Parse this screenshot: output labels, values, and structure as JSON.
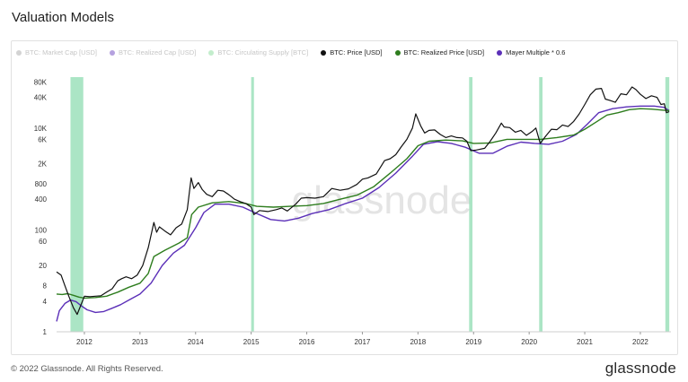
{
  "page": {
    "title": "Valuation Models",
    "copyright": "© 2022 Glassnode. All Rights Reserved.",
    "logo": "glassnode"
  },
  "chart_data": {
    "type": "line",
    "yscale": "log",
    "ylim": [
      1,
      100000
    ],
    "xlim": [
      2011.5,
      2022.55
    ],
    "watermark": "glassnode",
    "yticks": [
      {
        "value": 1,
        "label": "1"
      },
      {
        "value": 4,
        "label": "4"
      },
      {
        "value": 8,
        "label": "8"
      },
      {
        "value": 20,
        "label": "20"
      },
      {
        "value": 60,
        "label": "60"
      },
      {
        "value": 100,
        "label": "100"
      },
      {
        "value": 400,
        "label": "400"
      },
      {
        "value": 800,
        "label": "800"
      },
      {
        "value": 2000,
        "label": "2K"
      },
      {
        "value": 6000,
        "label": "6K"
      },
      {
        "value": 10000,
        "label": "10K"
      },
      {
        "value": 40000,
        "label": "40K"
      },
      {
        "value": 80000,
        "label": "80K"
      }
    ],
    "xticks": [
      {
        "value": 2012,
        "label": "2012"
      },
      {
        "value": 2013,
        "label": "2013"
      },
      {
        "value": 2014,
        "label": "2014"
      },
      {
        "value": 2015,
        "label": "2015"
      },
      {
        "value": 2016,
        "label": "2016"
      },
      {
        "value": 2017,
        "label": "2017"
      },
      {
        "value": 2018,
        "label": "2018"
      },
      {
        "value": 2019,
        "label": "2019"
      },
      {
        "value": 2020,
        "label": "2020"
      },
      {
        "value": 2021,
        "label": "2021"
      },
      {
        "value": 2022,
        "label": "2022"
      }
    ],
    "legend": [
      {
        "name": "BTC: Market Cap [USD]",
        "color": "#9e9e9e",
        "enabled": false
      },
      {
        "name": "BTC: Realized Cap [USD]",
        "color": "#5b2fb8",
        "enabled": false
      },
      {
        "name": "BTC: Circulating Supply [BTC]",
        "color": "#7bd88f",
        "enabled": false
      },
      {
        "name": "BTC: Price [USD]",
        "color": "#111111",
        "enabled": true
      },
      {
        "name": "BTC: Realized Price [USD]",
        "color": "#2e7d1e",
        "enabled": true
      },
      {
        "name": "Mayer Multiple * 0.6",
        "color": "#5b2fb8",
        "enabled": true
      }
    ],
    "highlight_bands": [
      {
        "start": 2011.75,
        "end": 2011.98
      },
      {
        "start": 2015.0,
        "end": 2015.05
      },
      {
        "start": 2018.92,
        "end": 2018.98
      },
      {
        "start": 2020.18,
        "end": 2020.24
      },
      {
        "start": 2022.45,
        "end": 2022.52
      }
    ],
    "series": [
      {
        "name": "BTC: Price [USD]",
        "color": "#111111",
        "points": [
          [
            2011.5,
            15
          ],
          [
            2011.58,
            13
          ],
          [
            2011.65,
            8
          ],
          [
            2011.72,
            5
          ],
          [
            2011.8,
            3
          ],
          [
            2011.87,
            2.2
          ],
          [
            2011.92,
            3
          ],
          [
            2012.0,
            5
          ],
          [
            2012.1,
            4.9
          ],
          [
            2012.2,
            5
          ],
          [
            2012.3,
            5.1
          ],
          [
            2012.4,
            6
          ],
          [
            2012.5,
            7
          ],
          [
            2012.6,
            10
          ],
          [
            2012.67,
            11
          ],
          [
            2012.75,
            12
          ],
          [
            2012.85,
            11
          ],
          [
            2012.95,
            13
          ],
          [
            2013.05,
            20
          ],
          [
            2013.15,
            45
          ],
          [
            2013.25,
            140
          ],
          [
            2013.3,
            90
          ],
          [
            2013.35,
            115
          ],
          [
            2013.45,
            95
          ],
          [
            2013.55,
            80
          ],
          [
            2013.65,
            110
          ],
          [
            2013.75,
            130
          ],
          [
            2013.85,
            250
          ],
          [
            2013.92,
            1050
          ],
          [
            2013.97,
            650
          ],
          [
            2014.05,
            850
          ],
          [
            2014.12,
            620
          ],
          [
            2014.2,
            500
          ],
          [
            2014.3,
            450
          ],
          [
            2014.4,
            600
          ],
          [
            2014.5,
            580
          ],
          [
            2014.6,
            490
          ],
          [
            2014.7,
            400
          ],
          [
            2014.8,
            360
          ],
          [
            2014.9,
            330
          ],
          [
            2015.0,
            280
          ],
          [
            2015.05,
            200
          ],
          [
            2015.15,
            240
          ],
          [
            2015.3,
            230
          ],
          [
            2015.45,
            250
          ],
          [
            2015.55,
            270
          ],
          [
            2015.65,
            235
          ],
          [
            2015.8,
            320
          ],
          [
            2015.9,
            420
          ],
          [
            2016.0,
            430
          ],
          [
            2016.15,
            420
          ],
          [
            2016.3,
            450
          ],
          [
            2016.45,
            650
          ],
          [
            2016.6,
            600
          ],
          [
            2016.75,
            640
          ],
          [
            2016.9,
            780
          ],
          [
            2017.0,
            990
          ],
          [
            2017.1,
            1050
          ],
          [
            2017.25,
            1250
          ],
          [
            2017.4,
            2300
          ],
          [
            2017.5,
            2500
          ],
          [
            2017.6,
            3000
          ],
          [
            2017.7,
            4300
          ],
          [
            2017.8,
            6000
          ],
          [
            2017.9,
            10000
          ],
          [
            2017.96,
            19000
          ],
          [
            2018.05,
            11000
          ],
          [
            2018.12,
            8000
          ],
          [
            2018.2,
            9000
          ],
          [
            2018.3,
            9200
          ],
          [
            2018.4,
            7500
          ],
          [
            2018.5,
            6500
          ],
          [
            2018.6,
            7000
          ],
          [
            2018.7,
            6500
          ],
          [
            2018.8,
            6400
          ],
          [
            2018.88,
            5500
          ],
          [
            2018.95,
            3600
          ],
          [
            2019.05,
            3700
          ],
          [
            2019.2,
            4000
          ],
          [
            2019.3,
            5500
          ],
          [
            2019.4,
            8000
          ],
          [
            2019.5,
            12500
          ],
          [
            2019.55,
            10500
          ],
          [
            2019.65,
            10200
          ],
          [
            2019.75,
            8300
          ],
          [
            2019.85,
            9000
          ],
          [
            2019.95,
            7200
          ],
          [
            2020.05,
            8500
          ],
          [
            2020.12,
            10000
          ],
          [
            2020.2,
            5000
          ],
          [
            2020.3,
            7000
          ],
          [
            2020.4,
            9500
          ],
          [
            2020.5,
            9300
          ],
          [
            2020.6,
            11500
          ],
          [
            2020.7,
            10700
          ],
          [
            2020.8,
            13500
          ],
          [
            2020.9,
            19000
          ],
          [
            2021.0,
            29000
          ],
          [
            2021.1,
            45000
          ],
          [
            2021.2,
            58000
          ],
          [
            2021.3,
            60000
          ],
          [
            2021.37,
            37000
          ],
          [
            2021.45,
            35000
          ],
          [
            2021.55,
            32000
          ],
          [
            2021.65,
            47000
          ],
          [
            2021.75,
            45000
          ],
          [
            2021.85,
            64000
          ],
          [
            2021.92,
            57000
          ],
          [
            2022.0,
            46000
          ],
          [
            2022.1,
            38000
          ],
          [
            2022.2,
            43000
          ],
          [
            2022.3,
            40000
          ],
          [
            2022.37,
            29000
          ],
          [
            2022.43,
            30000
          ],
          [
            2022.47,
            20000
          ],
          [
            2022.52,
            21000
          ]
        ]
      },
      {
        "name": "BTC: Realized Price [USD]",
        "color": "#2e7d1e",
        "points": [
          [
            2011.5,
            5.5
          ],
          [
            2011.6,
            5.4
          ],
          [
            2011.7,
            5.6
          ],
          [
            2011.8,
            5.2
          ],
          [
            2011.9,
            4.8
          ],
          [
            2012.0,
            4.6
          ],
          [
            2012.2,
            4.7
          ],
          [
            2012.4,
            5.0
          ],
          [
            2012.6,
            6.0
          ],
          [
            2012.8,
            7.5
          ],
          [
            2013.0,
            9
          ],
          [
            2013.15,
            14
          ],
          [
            2013.25,
            30
          ],
          [
            2013.45,
            40
          ],
          [
            2013.7,
            55
          ],
          [
            2013.85,
            70
          ],
          [
            2013.93,
            200
          ],
          [
            2014.05,
            280
          ],
          [
            2014.3,
            340
          ],
          [
            2014.6,
            360
          ],
          [
            2014.9,
            330
          ],
          [
            2015.1,
            290
          ],
          [
            2015.4,
            280
          ],
          [
            2015.7,
            290
          ],
          [
            2016.0,
            300
          ],
          [
            2016.3,
            330
          ],
          [
            2016.6,
            400
          ],
          [
            2016.9,
            480
          ],
          [
            2017.2,
            700
          ],
          [
            2017.5,
            1300
          ],
          [
            2017.8,
            2500
          ],
          [
            2018.0,
            4500
          ],
          [
            2018.2,
            5500
          ],
          [
            2018.5,
            5800
          ],
          [
            2018.8,
            5600
          ],
          [
            2019.0,
            5000
          ],
          [
            2019.3,
            5100
          ],
          [
            2019.6,
            6000
          ],
          [
            2019.9,
            6000
          ],
          [
            2020.2,
            6000
          ],
          [
            2020.5,
            6500
          ],
          [
            2020.8,
            7300
          ],
          [
            2021.0,
            9500
          ],
          [
            2021.2,
            13000
          ],
          [
            2021.4,
            18000
          ],
          [
            2021.6,
            20000
          ],
          [
            2021.8,
            23000
          ],
          [
            2022.0,
            24000
          ],
          [
            2022.2,
            23500
          ],
          [
            2022.4,
            22500
          ],
          [
            2022.52,
            22000
          ]
        ]
      },
      {
        "name": "Mayer Multiple * 0.6",
        "color": "#5b2fb8",
        "points": [
          [
            2011.5,
            1.6
          ],
          [
            2011.55,
            2.6
          ],
          [
            2011.65,
            3.6
          ],
          [
            2011.75,
            4.2
          ],
          [
            2011.85,
            3.9
          ],
          [
            2011.95,
            3.2
          ],
          [
            2012.05,
            2.7
          ],
          [
            2012.2,
            2.4
          ],
          [
            2012.35,
            2.5
          ],
          [
            2012.5,
            2.9
          ],
          [
            2012.65,
            3.4
          ],
          [
            2012.8,
            4.2
          ],
          [
            2013.0,
            5.5
          ],
          [
            2013.2,
            9
          ],
          [
            2013.4,
            20
          ],
          [
            2013.6,
            35
          ],
          [
            2013.8,
            50
          ],
          [
            2014.0,
            110
          ],
          [
            2014.15,
            220
          ],
          [
            2014.35,
            320
          ],
          [
            2014.6,
            320
          ],
          [
            2014.85,
            280
          ],
          [
            2015.1,
            210
          ],
          [
            2015.35,
            160
          ],
          [
            2015.6,
            150
          ],
          [
            2015.85,
            170
          ],
          [
            2016.1,
            210
          ],
          [
            2016.4,
            250
          ],
          [
            2016.7,
            330
          ],
          [
            2017.0,
            420
          ],
          [
            2017.3,
            680
          ],
          [
            2017.6,
            1300
          ],
          [
            2017.9,
            2800
          ],
          [
            2018.1,
            4800
          ],
          [
            2018.35,
            5400
          ],
          [
            2018.6,
            5000
          ],
          [
            2018.85,
            4200
          ],
          [
            2019.1,
            3200
          ],
          [
            2019.35,
            3200
          ],
          [
            2019.6,
            4400
          ],
          [
            2019.85,
            5300
          ],
          [
            2020.1,
            5000
          ],
          [
            2020.35,
            4800
          ],
          [
            2020.6,
            5500
          ],
          [
            2020.85,
            7500
          ],
          [
            2021.05,
            12000
          ],
          [
            2021.25,
            20000
          ],
          [
            2021.5,
            24000
          ],
          [
            2021.75,
            26000
          ],
          [
            2022.0,
            27000
          ],
          [
            2022.25,
            27000
          ],
          [
            2022.42,
            25500
          ],
          [
            2022.52,
            22000
          ]
        ]
      }
    ]
  }
}
